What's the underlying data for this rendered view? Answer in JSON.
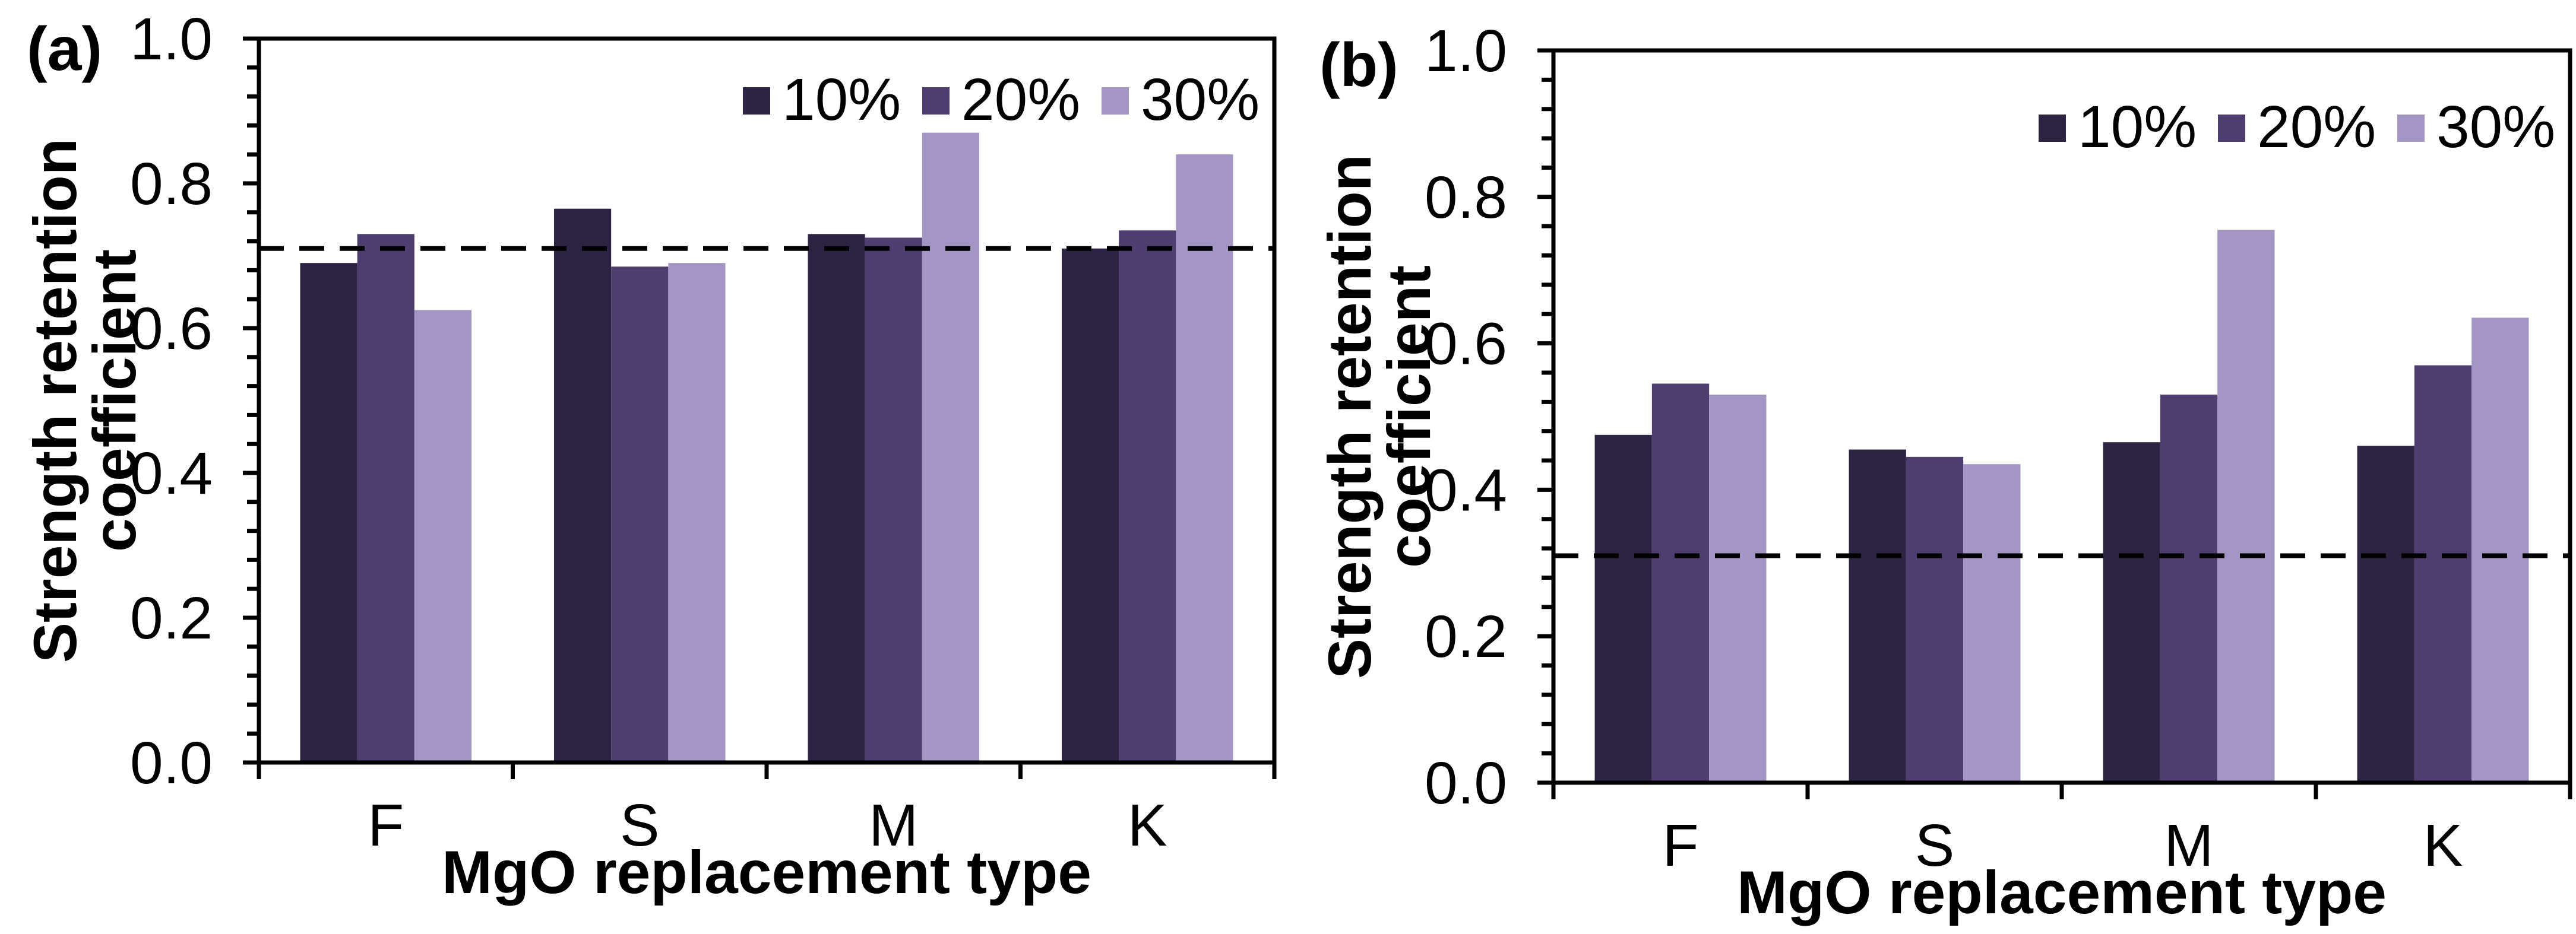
{
  "figure": {
    "background": "#ffffff",
    "text_color": "#000000",
    "axis_color": "#000000",
    "series_colors": [
      "#2d2342",
      "#4e3d6f",
      "#a396c5"
    ],
    "reference_line_color": "#000000",
    "reference_line_style": "dashed"
  },
  "chart_data": [
    {
      "type": "bar",
      "panel_label": "(a)",
      "xlabel": "MgO replacement type",
      "ylabel_lines": [
        "Strength retention",
        "coefficient"
      ],
      "categories": [
        "F",
        "S",
        "M",
        "K"
      ],
      "series": [
        {
          "name": "10%",
          "values": [
            0.69,
            0.765,
            0.73,
            0.71
          ]
        },
        {
          "name": "20%",
          "values": [
            0.73,
            0.685,
            0.725,
            0.735
          ]
        },
        {
          "name": "30%",
          "values": [
            0.625,
            0.69,
            0.87,
            0.84
          ]
        }
      ],
      "ylim": [
        0.0,
        1.0
      ],
      "ytick_interval": 0.2,
      "ytick_minor_interval": 0.04,
      "ytick_labels": [
        "0.0",
        "0.2",
        "0.4",
        "0.6",
        "0.8",
        "1.0"
      ],
      "reference_line_y": 0.71,
      "legend_position": "top-right",
      "legend_entries": [
        "10%",
        "20%",
        "30%"
      ],
      "grid": false
    },
    {
      "type": "bar",
      "panel_label": "(b)",
      "xlabel": "MgO replacement type",
      "ylabel_lines": [
        "Strength retention",
        "coefficient"
      ],
      "categories": [
        "F",
        "S",
        "M",
        "K"
      ],
      "series": [
        {
          "name": "10%",
          "values": [
            0.475,
            0.455,
            0.465,
            0.46
          ]
        },
        {
          "name": "20%",
          "values": [
            0.545,
            0.445,
            0.53,
            0.57
          ]
        },
        {
          "name": "30%",
          "values": [
            0.53,
            0.435,
            0.755,
            0.635
          ]
        }
      ],
      "ylim": [
        0.0,
        1.0
      ],
      "ytick_interval": 0.2,
      "ytick_minor_interval": 0.04,
      "ytick_labels": [
        "0.0",
        "0.2",
        "0.4",
        "0.6",
        "0.8",
        "1.0"
      ],
      "reference_line_y": 0.31,
      "legend_position": "top-right",
      "legend_entries": [
        "10%",
        "20%",
        "30%"
      ],
      "grid": false
    }
  ]
}
